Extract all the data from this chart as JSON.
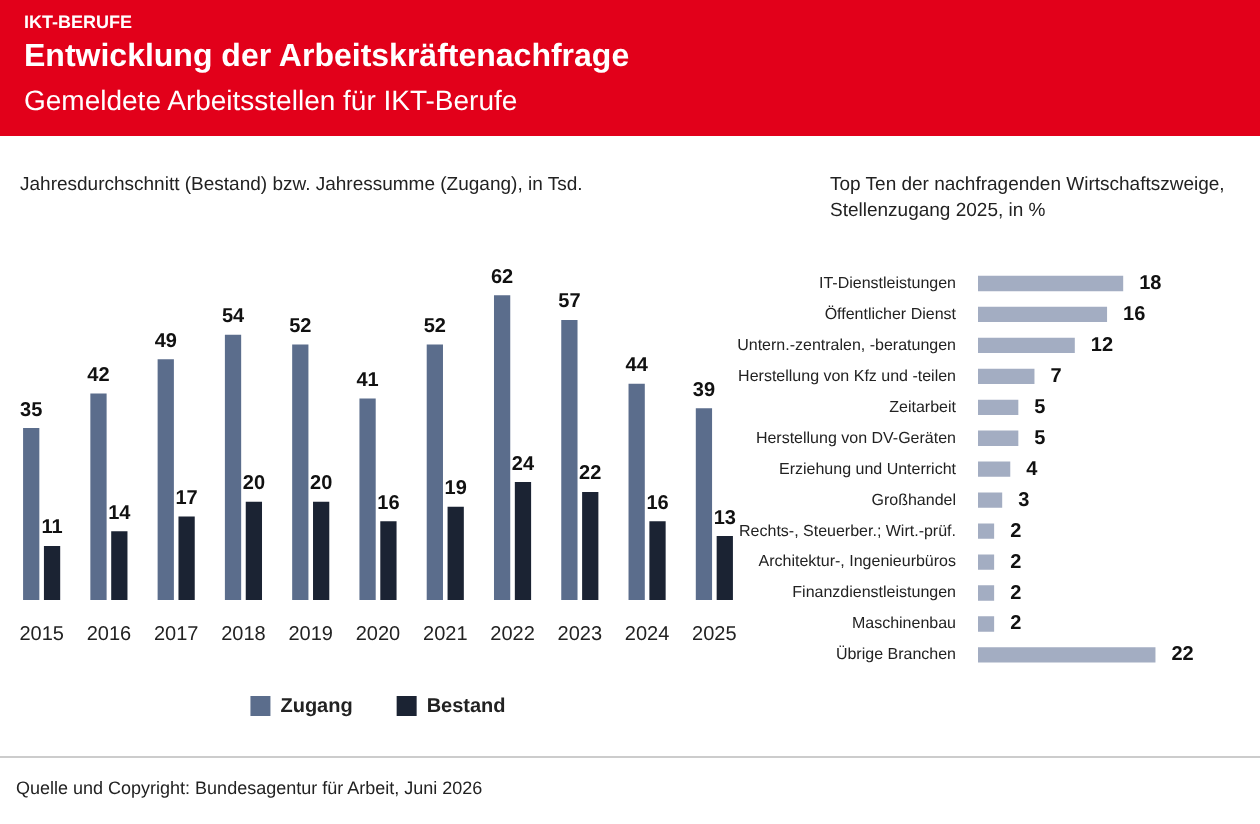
{
  "chart_data": [
    {
      "type": "bar",
      "title": "Entwicklung der Arbeitskräftenachfrage",
      "subtitle": "Gemeldete Arbeitsstellen für IKT-Berufe",
      "annotations": [
        "IKT-BERUFE",
        "Jahresdurchschnitt (Bestand) bzw. Jahressumme (Zugang), in Tsd.",
        "Quelle und Copyright: Bundesagentur für Arbeit, Juni 2026"
      ],
      "categories": [
        "2015",
        "2016",
        "2017",
        "2018",
        "2019",
        "2020",
        "2021",
        "2022",
        "2023",
        "2024",
        "2025"
      ],
      "series": [
        {
          "name": "Zugang",
          "color": "#5b6d8c",
          "values": [
            35,
            42,
            49,
            54,
            52,
            41,
            52,
            62,
            57,
            44,
            39
          ]
        },
        {
          "name": "Bestand",
          "color": "#1b2333",
          "values": [
            11,
            14,
            17,
            20,
            20,
            16,
            19,
            24,
            22,
            16,
            13
          ]
        }
      ],
      "data_labels": true,
      "grid": false,
      "legend": "bottom",
      "tick_labels": "x"
    },
    {
      "type": "bar",
      "orientation": "horizontal",
      "title": "Top Ten der nachfragenden Wirtschaftszweige, Stellenzugang 2025, in %",
      "categories": [
        "IT-Dienstleistungen",
        "Öffentlicher Dienst",
        "Untern.-zentralen, -beratungen",
        "Herstellung von Kfz und -teilen",
        "Zeitarbeit",
        "Herstellung von DV-Geräten",
        "Erziehung und Unterricht",
        "Großhandel",
        "Rechts-, Steuerber.; Wirt.-prüf.",
        "Architektur-, Ingenieurbüros",
        "Finanzdienstleistungen",
        "Maschinenbau",
        "Übrige Branchen"
      ],
      "values": [
        18,
        16,
        12,
        7,
        5,
        5,
        4,
        3,
        2,
        2,
        2,
        2,
        22
      ],
      "color": "#a3adc2",
      "data_labels": true,
      "grid": false,
      "tick_labels": "y"
    }
  ]
}
